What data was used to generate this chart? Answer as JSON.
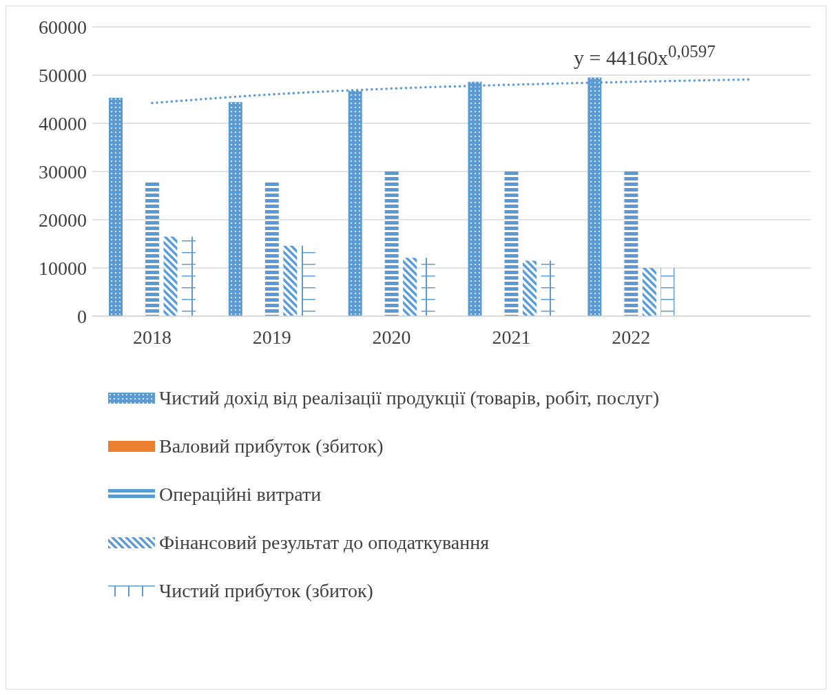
{
  "chart_data": {
    "type": "bar",
    "categories": [
      "2018",
      "2019",
      "2020",
      "2021",
      "2022",
      null
    ],
    "series": [
      {
        "name": "Чистий дохід від реалізації продукції (товарів, робіт, послуг)",
        "color": "#5b9bd5",
        "values": [
          45300,
          44400,
          46700,
          48600,
          49500,
          null
        ]
      },
      {
        "name": "Валовий прибуток (збиток)",
        "color": "#ed7d31",
        "values": [
          null,
          null,
          null,
          null,
          null,
          null
        ]
      },
      {
        "name": "Операційні витрати",
        "color": "#5b9bd5",
        "values": [
          27700,
          28000,
          30400,
          30000,
          30000,
          null
        ]
      },
      {
        "name": "Фінансовий результат до оподаткування",
        "color": "#5b9bd5",
        "values": [
          16500,
          14600,
          12100,
          11500,
          10000,
          null
        ]
      },
      {
        "name": "Чистий прибуток (збиток)",
        "color": "#5b9bd5",
        "values": [
          16500,
          14600,
          12100,
          11500,
          10000,
          null
        ]
      },
      {
        "type": "line",
        "color": "#5b9bd5",
        "line_style": "dotted",
        "values": [
          44200,
          46000,
          47200,
          48000,
          48600,
          49100
        ]
      }
    ],
    "ylim": [
      0,
      60000
    ],
    "yticks": [
      0,
      10000,
      20000,
      30000,
      40000,
      50000,
      60000
    ],
    "grid": "y",
    "legend": "bottom",
    "annotations": [
      "y = 44160x$^{0,0597}$"
    ]
  }
}
